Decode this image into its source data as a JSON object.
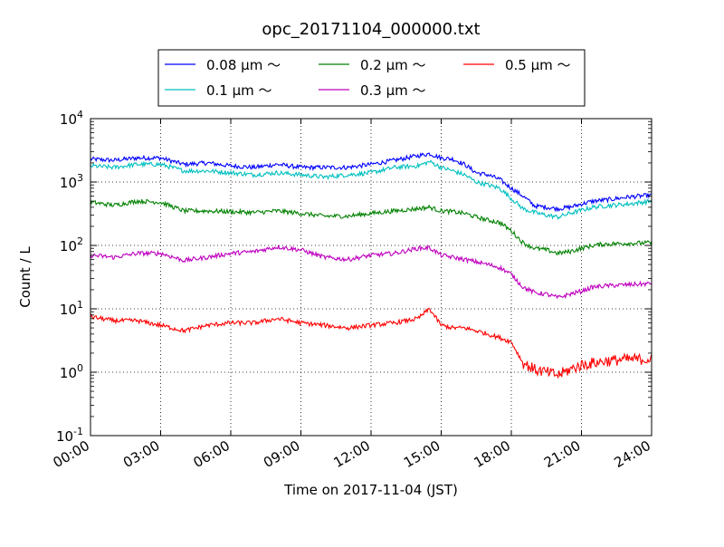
{
  "chart_data": {
    "type": "line",
    "title": "opc_20171104_000000.txt",
    "xlabel": "Time on 2017-11-04 (JST)",
    "ylabel": "Count / L",
    "x_unit": "hours",
    "xlim": [
      0,
      24
    ],
    "ylim": [
      0.1,
      10000
    ],
    "yscale": "log",
    "grid": true,
    "legend_position": "top-center",
    "x_ticks": [
      "00:00",
      "03:00",
      "06:00",
      "09:00",
      "12:00",
      "15:00",
      "18:00",
      "21:00",
      "24:00"
    ],
    "y_ticks": [
      {
        "base": "10",
        "exp": "-1"
      },
      {
        "base": "10",
        "exp": "0"
      },
      {
        "base": "10",
        "exp": "1"
      },
      {
        "base": "10",
        "exp": "2"
      },
      {
        "base": "10",
        "exp": "3"
      },
      {
        "base": "10",
        "exp": "4"
      }
    ],
    "x": [
      0,
      1,
      2,
      3,
      4,
      5,
      6,
      7,
      8,
      9,
      10,
      11,
      12,
      13,
      14,
      14.5,
      15,
      15.5,
      16,
      16.5,
      17,
      17.5,
      18,
      18.5,
      19,
      19.5,
      20,
      20.5,
      21,
      21.5,
      22,
      23,
      24
    ],
    "series": [
      {
        "name": "0.08 μm ～",
        "color": "#0000ff",
        "values": [
          2300,
          2200,
          2400,
          2400,
          1900,
          2000,
          1800,
          1700,
          1900,
          1700,
          1700,
          1700,
          1900,
          2200,
          2600,
          2800,
          2400,
          2300,
          1900,
          1400,
          1300,
          1100,
          800,
          600,
          420,
          400,
          380,
          400,
          450,
          500,
          520,
          580,
          620
        ]
      },
      {
        "name": "0.1 μm ～",
        "color": "#00bfbf",
        "values": [
          1800,
          1700,
          1900,
          1900,
          1500,
          1500,
          1400,
          1300,
          1400,
          1300,
          1200,
          1300,
          1400,
          1700,
          1800,
          2100,
          1700,
          1500,
          1300,
          1000,
          900,
          800,
          550,
          380,
          330,
          300,
          280,
          320,
          360,
          400,
          420,
          450,
          500
        ]
      },
      {
        "name": "0.2 μm ～",
        "color": "#008000",
        "values": [
          480,
          430,
          500,
          480,
          350,
          350,
          340,
          330,
          350,
          320,
          290,
          290,
          320,
          350,
          380,
          400,
          350,
          340,
          320,
          280,
          250,
          230,
          170,
          110,
          90,
          85,
          75,
          80,
          90,
          100,
          105,
          108,
          110
        ]
      },
      {
        "name": "0.3 μm ～",
        "color": "#bf00bf",
        "values": [
          70,
          65,
          75,
          75,
          58,
          65,
          75,
          80,
          95,
          85,
          65,
          60,
          70,
          75,
          90,
          92,
          70,
          65,
          60,
          55,
          50,
          45,
          35,
          22,
          18,
          17,
          15,
          17,
          19,
          22,
          23,
          24,
          25
        ]
      },
      {
        "name": "0.5 μm ～",
        "color": "#ff0000",
        "values": [
          7.5,
          6.5,
          6.5,
          5.5,
          4.5,
          5.5,
          6,
          6,
          7,
          6,
          5.5,
          5,
          5.5,
          6,
          7,
          10,
          5.5,
          5,
          5,
          4.5,
          4,
          3.5,
          3,
          1.4,
          1.1,
          1,
          0.9,
          1.1,
          1.3,
          1.4,
          1.5,
          1.6,
          1.6
        ]
      }
    ]
  }
}
